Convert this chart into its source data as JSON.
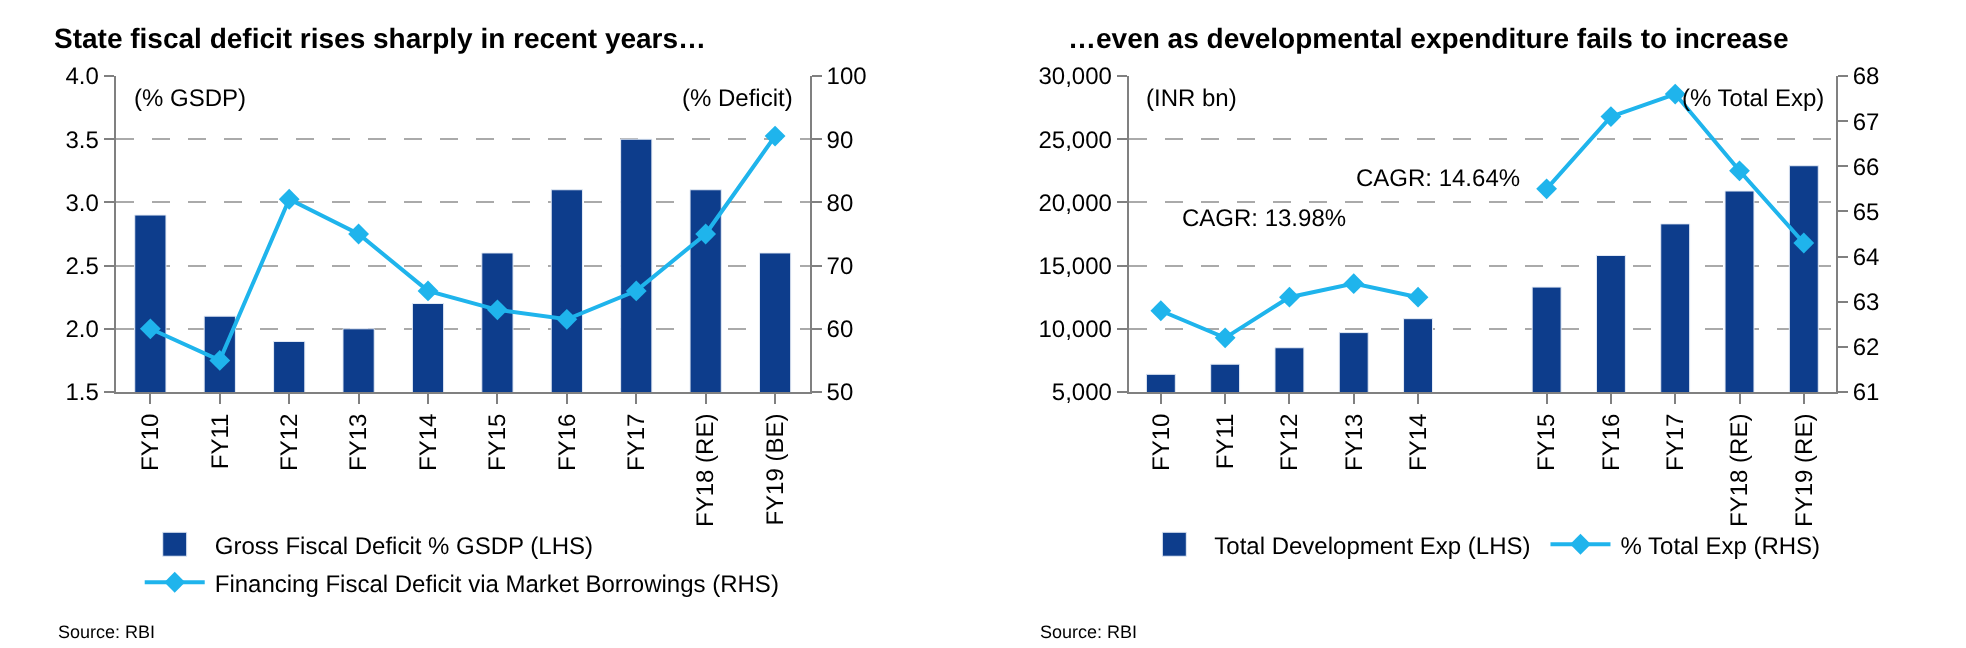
{
  "chart_data": [
    {
      "type": "bar",
      "title": "State fiscal deficit rises sharply in recent years…",
      "categories": [
        "FY10",
        "FY11",
        "FY12",
        "FY13",
        "FY14",
        "FY15",
        "FY16",
        "FY17",
        "FY18 (RE)",
        "FY19 (BE)"
      ],
      "series": [
        {
          "name": "Gross Fiscal Deficit % GSDP (LHS)",
          "color": "#0d3d8c",
          "values": [
            2.9,
            2.1,
            1.9,
            2.0,
            2.2,
            2.6,
            3.1,
            3.5,
            3.1,
            2.6
          ]
        },
        {
          "name": "Financing Fiscal Deficit via Market Borrowings (RHS)",
          "type": "line",
          "axis": "y2",
          "color": "#1fb4ec",
          "marker": "diamond",
          "values": [
            60,
            55,
            80.5,
            75,
            66,
            63,
            61.5,
            66,
            75,
            90.5
          ]
        }
      ],
      "ylim": [
        1.5,
        4.0
      ],
      "yticks": [
        {
          "value": 1.5,
          "label": "1.5"
        },
        {
          "value": 2.0,
          "label": "2.0"
        },
        {
          "value": 2.5,
          "label": "2.5"
        },
        {
          "value": 3.0,
          "label": "3.0"
        },
        {
          "value": 3.5,
          "label": "3.5"
        },
        {
          "value": 4.0,
          "label": "4.0"
        }
      ],
      "y2lim": [
        50,
        100
      ],
      "y2ticks": [
        50,
        60,
        70,
        80,
        90,
        100
      ],
      "grid": "y",
      "legend": "bottom",
      "annotations": [
        "(% GSDP)",
        "(% Deficit)",
        "Source: RBI"
      ]
    },
    {
      "type": "bar",
      "title": "…even as developmental expenditure fails to increase",
      "categories": [
        "FY10",
        "FY11",
        "FY12",
        "FY13",
        "FY14",
        null,
        "FY15",
        "FY16",
        "FY17",
        "FY18 (RE)",
        "FY19 (RE)"
      ],
      "series": [
        {
          "name": "Total Development Exp (LHS)",
          "color": "#0d3d8c",
          "values": [
            6400,
            7200,
            8500,
            9700,
            10800,
            null,
            13300,
            15800,
            18300,
            20900,
            22900
          ]
        },
        {
          "name": "% Total Exp (RHS)",
          "type": "line",
          "axis": "y2",
          "color": "#1fb4ec",
          "marker": "diamond",
          "values": [
            62.8,
            62.2,
            63.1,
            63.4,
            63.1,
            null,
            65.5,
            67.1,
            67.6,
            65.9,
            64.3
          ]
        }
      ],
      "ylim": [
        5000,
        30000
      ],
      "yticks": [
        {
          "value": 5000,
          "label": "5,000"
        },
        {
          "value": 10000,
          "label": "10,000"
        },
        {
          "value": 15000,
          "label": "15,000"
        },
        {
          "value": 20000,
          "label": "20,000"
        },
        {
          "value": 25000,
          "label": "25,000"
        },
        {
          "value": 30000,
          "label": "30,000"
        }
      ],
      "y2lim": [
        61,
        68
      ],
      "y2ticks": [
        61,
        62,
        63,
        64,
        65,
        66,
        67,
        68
      ],
      "grid": "y",
      "legend": "bottom",
      "annotations": [
        "(INR bn)",
        "(% Total Exp)",
        "CAGR: 13.98%",
        "CAGR: 14.64%",
        "Source: RBI"
      ]
    }
  ]
}
